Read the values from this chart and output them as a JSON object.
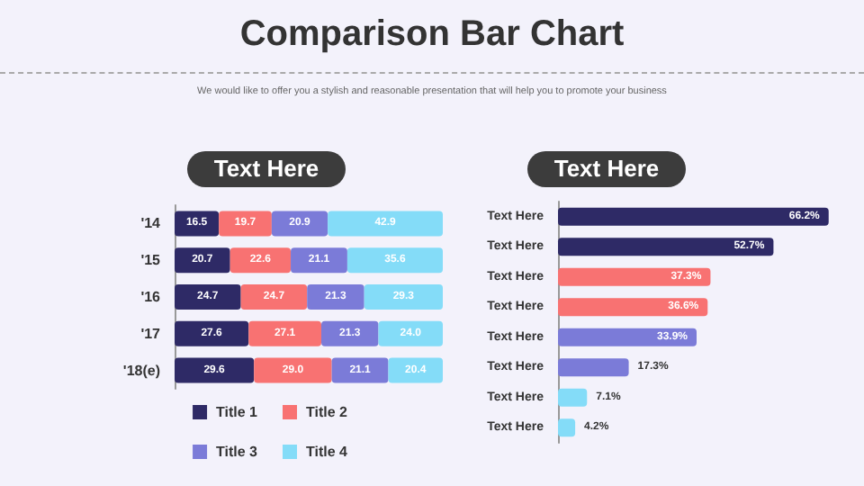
{
  "chart_data": [
    {
      "type": "bar",
      "title": "Text Here",
      "annotations": [
        "Comparison Bar Chart",
        "We would like to offer you a stylish and reasonable presentation that will help you to promote your business"
      ],
      "orientation": "horizontal",
      "stacked": true,
      "grid": false,
      "legend": "bottom",
      "tick_labels": "y",
      "categories": [
        "'14",
        "'15",
        "'16",
        "'17",
        "'18(e)"
      ],
      "xlim": [
        0,
        100
      ],
      "series": [
        {
          "name": "Title 1",
          "color": "#2e2a66",
          "values": [
            16.5,
            20.7,
            24.7,
            27.6,
            29.6
          ],
          "value_labels": [
            "16.5",
            "20.7",
            "24.7",
            "27.6",
            "29.6"
          ]
        },
        {
          "name": "Title 2",
          "color": "#f87272",
          "values": [
            19.7,
            22.6,
            24.7,
            27.1,
            29.0
          ],
          "value_labels": [
            "19.7",
            "22.6",
            "24.7",
            "27.1",
            "29.0"
          ]
        },
        {
          "name": "Title 3",
          "color": "#7b7bd8",
          "values": [
            20.9,
            21.1,
            21.3,
            21.3,
            21.1
          ],
          "value_labels": [
            "20.9",
            "21.1",
            "21.3",
            "21.3",
            "21.1"
          ]
        },
        {
          "name": "Title 4",
          "color": "#84dcf8",
          "values": [
            42.9,
            35.6,
            29.3,
            24.0,
            20.4
          ],
          "value_labels": [
            "42.9",
            "35.6",
            "29.3",
            "24.0",
            "20.4"
          ]
        }
      ]
    },
    {
      "type": "bar",
      "title": "Text Here",
      "orientation": "horizontal",
      "grid": false,
      "legend": false,
      "tick_labels": "y",
      "categories": [
        "Text Here",
        "Text Here",
        "Text Here",
        "Text Here",
        "Text Here",
        "Text Here",
        "Text Here",
        "Text Here"
      ],
      "values": [
        66.2,
        52.7,
        37.3,
        36.6,
        33.9,
        17.3,
        7.1,
        4.2
      ],
      "value_labels": [
        "66.2%",
        "52.7%",
        "37.3%",
        "36.6%",
        "33.9%",
        "17.3%",
        "7.1%",
        "4.2%"
      ],
      "colors": [
        "#2e2a66",
        "#2e2a66",
        "#f87272",
        "#f87272",
        "#7b7bd8",
        "#7b7bd8",
        "#84dcf8",
        "#84dcf8"
      ]
    }
  ]
}
